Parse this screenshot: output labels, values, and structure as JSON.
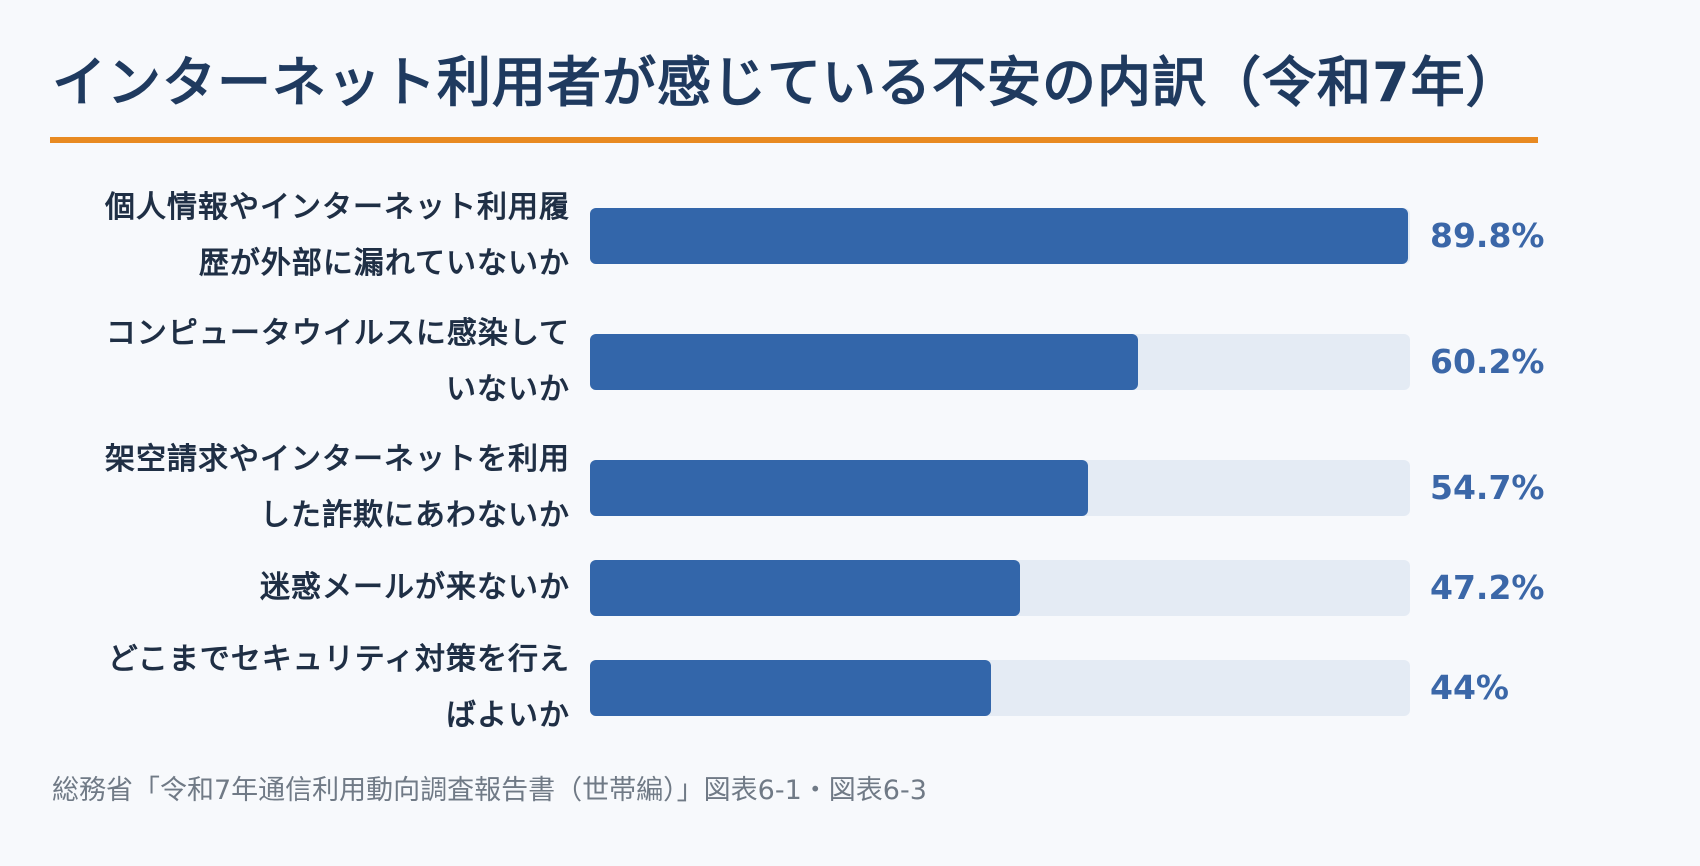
{
  "title": "インターネット利用者が感じている不安の内訳（令和7年）",
  "source": "総務省「令和7年通信利用動向調査報告書（世帯編）」図表6-1・図表6-3",
  "colors": {
    "title": "#1f3a5f",
    "rule": "#e88a22",
    "bar": "#3366aa",
    "track": "#e4ebf4",
    "value": "#3b67a8",
    "background": "#f7f9fc"
  },
  "chart_data": {
    "type": "bar",
    "orientation": "horizontal",
    "title": "インターネット利用者が感じている不安の内訳（令和7年）",
    "categories": [
      [
        "個人情報やインターネット利用履",
        "歴が外部に漏れていないか"
      ],
      [
        "コンピュータウイルスに感染して",
        "いないか"
      ],
      [
        "架空請求やインターネットを利用",
        "した詐欺にあわないか"
      ],
      [
        "迷惑メールが来ないか"
      ],
      [
        "どこまでセキュリティ対策を行え",
        "ばよいか"
      ]
    ],
    "values": [
      89.8,
      60.2,
      54.7,
      47.2,
      44
    ],
    "value_labels": [
      "89.8%",
      "60.2%",
      "54.7%",
      "47.2%",
      "44%"
    ],
    "xlim": [
      0,
      90
    ],
    "grid": false,
    "legend": "none"
  }
}
